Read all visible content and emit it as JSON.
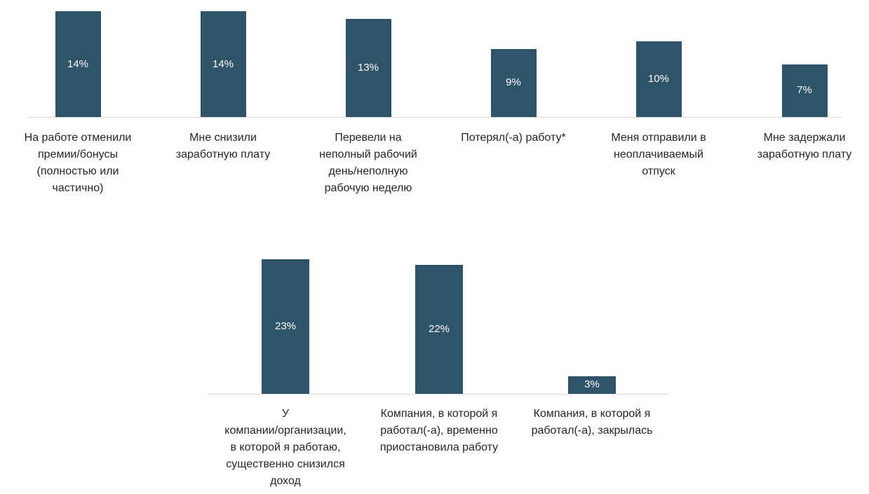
{
  "chart_data": [
    {
      "type": "bar",
      "categories": [
        "На работе отменили\nпремии/бонусы\n(полностью или\nчастично)",
        "Мне снизили\nзаработную плату",
        "Перевели на\nнеполный рабочий\nдень/неполную\nрабочую неделю",
        "Потерял(-а) работу*",
        "Меня отправили в\nнеоплачиваемый\nотпуск",
        "Мне задержали\nзаработную плату"
      ],
      "values": [
        14,
        14,
        13,
        9,
        10,
        7
      ],
      "data_labels": [
        "14%",
        "14%",
        "13%",
        "9%",
        "10%",
        "7%"
      ],
      "title": "",
      "xlabel": "",
      "ylabel": "",
      "ylim": [
        0,
        14
      ],
      "grid": false,
      "legend": "none",
      "bar_color": "#2f5469"
    },
    {
      "type": "bar",
      "categories": [
        "У\nкомпании/организации,\nв которой я работаю,\nсущественно снизился\nдоход",
        "Компания, в которой я\nработал(-а), временно\nприостановила работу",
        "Компания, в которой я\nработал(-а), закрылась"
      ],
      "values": [
        23,
        22,
        3
      ],
      "data_labels": [
        "23%",
        "22%",
        "3%"
      ],
      "title": "",
      "xlabel": "",
      "ylabel": "",
      "ylim": [
        0,
        23
      ],
      "grid": false,
      "legend": "none",
      "bar_color": "#2f5469"
    }
  ]
}
